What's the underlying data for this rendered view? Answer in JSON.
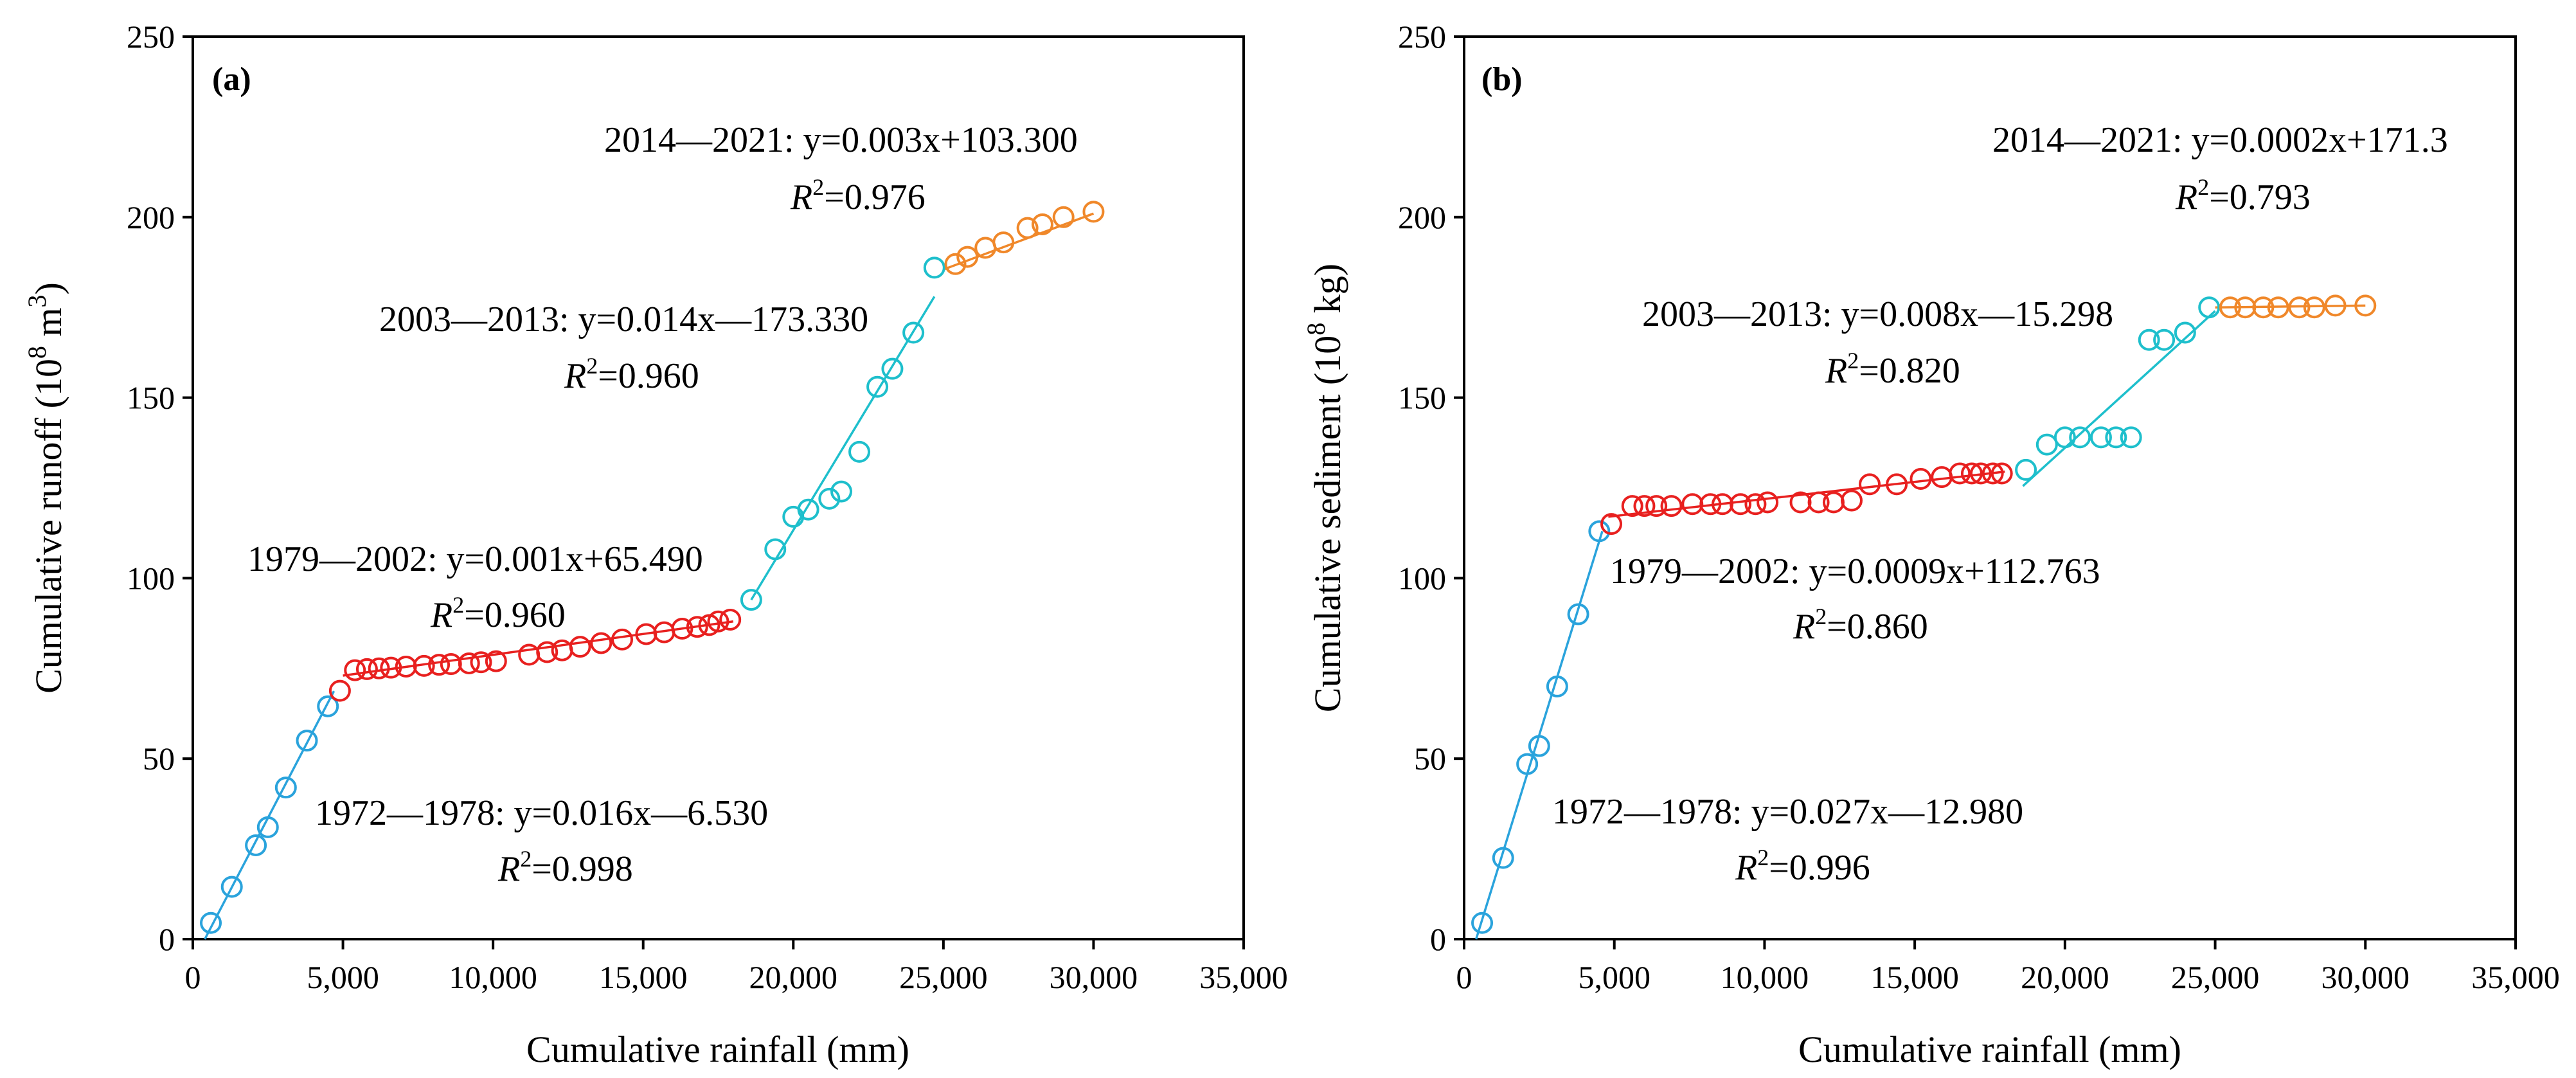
{
  "chart_data": [
    {
      "type": "scatter",
      "panel_label": "(a)",
      "xlabel": "Cumulative rainfall (mm)",
      "ylabel": "Cumulative runoff (10^8 m^3)",
      "ylabel_parts": {
        "pre": "Cumulative runoff (10",
        "exp1": "8",
        "mid": " m",
        "exp2": "3",
        "post": ")"
      },
      "xlim": [
        0,
        35000
      ],
      "ylim": [
        0,
        250
      ],
      "xticks": [
        0,
        5000,
        10000,
        15000,
        20000,
        25000,
        30000,
        35000
      ],
      "xtick_labels": [
        "0",
        "5,000",
        "10,000",
        "15,000",
        "20,000",
        "25,000",
        "30,000",
        "35,000"
      ],
      "yticks": [
        0,
        50,
        100,
        150,
        200,
        250
      ],
      "ytick_labels": [
        "0",
        "50",
        "100",
        "150",
        "200",
        "250"
      ],
      "series": [
        {
          "name": "1972—1978",
          "color": "#2aa3dc",
          "points": [
            [
              600,
              4.5
            ],
            [
              1300,
              14.5
            ],
            [
              2100,
              26
            ],
            [
              2500,
              31
            ],
            [
              3100,
              42
            ],
            [
              3800,
              55
            ],
            [
              4500,
              64.5
            ]
          ],
          "fit_line": [
            [
              400,
              0
            ],
            [
              4700,
              68.7
            ]
          ],
          "equation": "1972—1978: y=0.016x—6.530",
          "r2_value": "=0.998"
        },
        {
          "name": "1979—2002",
          "color": "#e8201f",
          "points": [
            [
              4900,
              68.8
            ],
            [
              5400,
              74.5
            ],
            [
              5800,
              74.8
            ],
            [
              6200,
              75
            ],
            [
              6600,
              75.2
            ],
            [
              7100,
              75.5
            ],
            [
              7700,
              75.7
            ],
            [
              8200,
              76
            ],
            [
              8600,
              76.2
            ],
            [
              9200,
              76.4
            ],
            [
              9600,
              76.7
            ],
            [
              10100,
              77
            ],
            [
              11200,
              78.8
            ],
            [
              11800,
              79.5
            ],
            [
              12300,
              80
            ],
            [
              12900,
              81
            ],
            [
              13600,
              82
            ],
            [
              14300,
              83
            ],
            [
              15100,
              84.5
            ],
            [
              15700,
              85
            ],
            [
              16300,
              86
            ],
            [
              16800,
              86.5
            ],
            [
              17200,
              87
            ],
            [
              17500,
              88
            ],
            [
              17900,
              88.5
            ]
          ],
          "fit_line": [
            [
              5000,
              73
            ],
            [
              18000,
              88
            ]
          ],
          "equation": "1979—2002: y=0.001x+65.490",
          "r2_value": "=0.960"
        },
        {
          "name": "2003—2013",
          "color": "#1ebfcc",
          "points": [
            [
              18600,
              94
            ],
            [
              19400,
              108
            ],
            [
              20000,
              117
            ],
            [
              20500,
              119
            ],
            [
              21200,
              122
            ],
            [
              21600,
              124
            ],
            [
              22200,
              135
            ],
            [
              22800,
              153
            ],
            [
              23300,
              158
            ],
            [
              24000,
              168
            ],
            [
              24700,
              186
            ]
          ],
          "fit_line": [
            [
              18600,
              94
            ],
            [
              24700,
              178
            ]
          ],
          "equation": "2003—2013: y=0.014x—173.330",
          "r2_value": "=0.960"
        },
        {
          "name": "2014—2021",
          "color": "#f0882a",
          "points": [
            [
              25400,
              187
            ],
            [
              25800,
              189
            ],
            [
              26400,
              191.5
            ],
            [
              27000,
              193
            ],
            [
              27800,
              197
            ],
            [
              28300,
              198
            ],
            [
              29000,
              200
            ],
            [
              30000,
              201.5
            ]
          ],
          "fit_line": [
            [
              25000,
              185.5
            ],
            [
              30000,
              201
            ]
          ],
          "equation": "2014—2021: y=0.003x+103.300",
          "r2_value": "=0.976"
        }
      ]
    },
    {
      "type": "scatter",
      "panel_label": "(b)",
      "xlabel": "Cumulative rainfall (mm)",
      "ylabel": "Cumulative sediment (10^8 kg)",
      "ylabel_parts": {
        "pre": "Cumulative sediment (10",
        "exp1": "8",
        "mid": " kg)",
        "exp2": "",
        "post": ""
      },
      "xlim": [
        0,
        35000
      ],
      "ylim": [
        0,
        250
      ],
      "xticks": [
        0,
        5000,
        10000,
        15000,
        20000,
        25000,
        30000,
        35000
      ],
      "xtick_labels": [
        "0",
        "5,000",
        "10,000",
        "15,000",
        "20,000",
        "25,000",
        "30,000",
        "35,000"
      ],
      "yticks": [
        0,
        50,
        100,
        150,
        200,
        250
      ],
      "ytick_labels": [
        "0",
        "50",
        "100",
        "150",
        "200",
        "250"
      ],
      "series": [
        {
          "name": "1972—1978",
          "color": "#2aa3dc",
          "points": [
            [
              600,
              4.5
            ],
            [
              1300,
              22.5
            ],
            [
              2100,
              48.5
            ],
            [
              2500,
              53.5
            ],
            [
              3100,
              70
            ],
            [
              3800,
              90
            ],
            [
              4500,
              113
            ]
          ],
          "fit_line": [
            [
              400,
              0
            ],
            [
              4600,
              113
            ]
          ],
          "equation": "1972—1978: y=0.027x—12.980",
          "r2_value": "=0.996"
        },
        {
          "name": "1979—2002",
          "color": "#e8201f",
          "points": [
            [
              4900,
              115
            ],
            [
              5600,
              120
            ],
            [
              6000,
              120
            ],
            [
              6400,
              120
            ],
            [
              6900,
              120
            ],
            [
              7600,
              120.5
            ],
            [
              8200,
              120.5
            ],
            [
              8600,
              120.5
            ],
            [
              9200,
              120.5
            ],
            [
              9700,
              120.5
            ],
            [
              10100,
              121
            ],
            [
              11200,
              121
            ],
            [
              11800,
              121
            ],
            [
              12300,
              121
            ],
            [
              12900,
              121.5
            ],
            [
              13500,
              126
            ],
            [
              14400,
              126
            ],
            [
              15200,
              127.5
            ],
            [
              15900,
              128
            ],
            [
              16500,
              129
            ],
            [
              16900,
              129
            ],
            [
              17200,
              129
            ],
            [
              17600,
              129
            ],
            [
              17900,
              129
            ]
          ],
          "fit_line": [
            [
              4800,
              117
            ],
            [
              18000,
              129.5
            ]
          ],
          "equation": "1979—2002: y=0.0009x+112.763",
          "r2_value": "=0.860"
        },
        {
          "name": "2003—2013",
          "color": "#1ebfcc",
          "points": [
            [
              18700,
              130
            ],
            [
              19400,
              137
            ],
            [
              20000,
              139
            ],
            [
              20500,
              139
            ],
            [
              21200,
              139
            ],
            [
              21700,
              139
            ],
            [
              22200,
              139
            ],
            [
              22800,
              166
            ],
            [
              23300,
              166
            ],
            [
              24000,
              168
            ],
            [
              24800,
              175
            ]
          ],
          "fit_line": [
            [
              18600,
              125.5
            ],
            [
              25000,
              174
            ]
          ],
          "equation": "2003—2013: y=0.008x—15.298",
          "r2_value": "=0.820"
        },
        {
          "name": "2014—2021",
          "color": "#f0882a",
          "points": [
            [
              25500,
              175
            ],
            [
              26000,
              175
            ],
            [
              26600,
              175
            ],
            [
              27100,
              175
            ],
            [
              27800,
              175
            ],
            [
              28300,
              175
            ],
            [
              29000,
              175.5
            ],
            [
              30000,
              175.5
            ]
          ],
          "fit_line": [
            [
              25000,
              175
            ],
            [
              30000,
              175.5
            ]
          ],
          "equation": "2014—2021: y=0.0002x+171.3",
          "r2_value": "=0.793"
        }
      ]
    }
  ]
}
